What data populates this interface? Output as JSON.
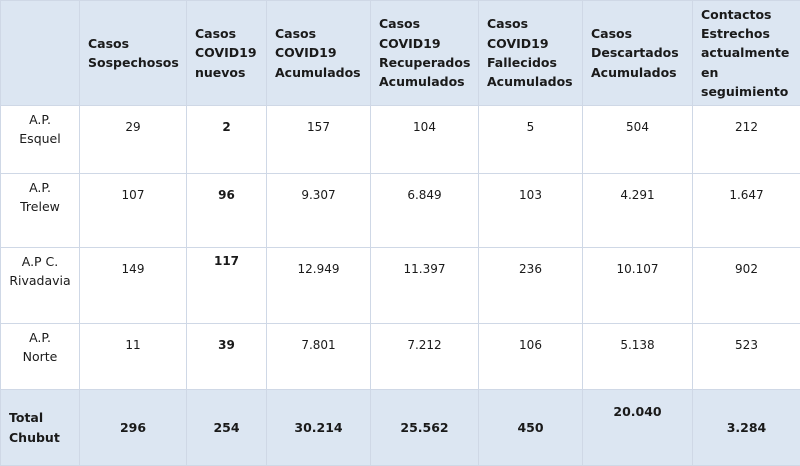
{
  "headers": [
    "Casos Sospechosos",
    "Casos COVID19 nuevos",
    "Casos COVID19 Acumulados",
    "Casos COVID19 Recuperados Acumulados",
    "Casos COVID19 Fallecidos Acumulados",
    "Casos Descartados Acumulados",
    "Contactos Estrechos actualmente en seguimiento"
  ],
  "rows": [
    {
      "label_line1": "A.P.",
      "label_line2": "Esquel",
      "values": [
        "29",
        "2",
        "157",
        "104",
        "5",
        "504",
        "212"
      ]
    },
    {
      "label_line1": "A.P.",
      "label_line2": "Trelew",
      "values": [
        "107",
        "96",
        "9.307",
        "6.849",
        "103",
        "4.291",
        "1.647"
      ]
    },
    {
      "label_line1": "A.P C.",
      "label_line2": "Rivadavia",
      "values": [
        "149",
        "117",
        "12.949",
        "11.397",
        "236",
        "10.107",
        "902"
      ]
    },
    {
      "label_line1": "A.P.",
      "label_line2": "Norte",
      "values": [
        "11",
        "39",
        "7.801",
        "7.212",
        "106",
        "5.138",
        "523"
      ]
    }
  ],
  "total": {
    "label_line1": "Total",
    "label_line2": "Chubut",
    "values": [
      "296",
      "254",
      "30.214",
      "25.562",
      "450",
      "20.040",
      "3.284"
    ]
  },
  "colors": {
    "header_bg": "#dce6f2",
    "grid": "#cfd8e6"
  }
}
